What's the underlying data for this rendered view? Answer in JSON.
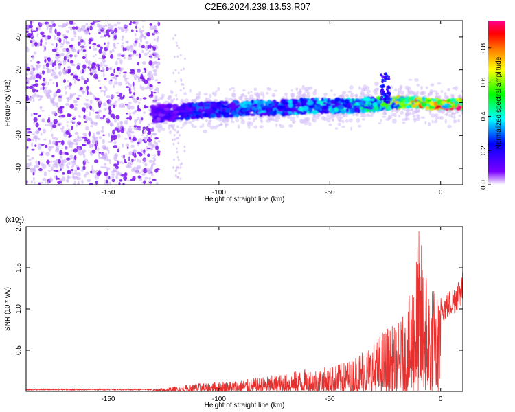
{
  "title": "C2E6.2024.239.13.53.R07",
  "chart_data": [
    {
      "type": "heatmap",
      "xlabel": "Height of straight line (km)",
      "ylabel": "Frequency (Hz)",
      "xlim": [
        -187,
        10
      ],
      "ylim": [
        -50,
        50
      ],
      "x_ticks": [
        -150,
        -100,
        -50,
        0
      ],
      "y_ticks": [
        -40,
        -20,
        0,
        20,
        40
      ],
      "colorbar": {
        "label": "Normalized spectral amplitude",
        "range": [
          0,
          0.96
        ],
        "ticks": [
          "0.0",
          "0.2",
          "0.4",
          "0.6",
          "0.8"
        ],
        "colors": [
          "#ffffff",
          "#7a00ff",
          "#0000ff",
          "#00ffff",
          "#00ff00",
          "#ffff00",
          "#ff8000",
          "#ff0000",
          "#ff0090"
        ]
      },
      "ridge": {
        "x": [
          -130,
          -120,
          -110,
          -100,
          -90,
          -80,
          -70,
          -60,
          -50,
          -40,
          -30,
          -20,
          -10,
          0,
          9
        ],
        "y": [
          -7,
          -6,
          -5,
          -4,
          -4,
          -3,
          -3,
          -2,
          -2,
          -2,
          -1,
          0,
          0,
          -1,
          -1
        ],
        "amplitude": [
          0.15,
          0.2,
          0.3,
          0.3,
          0.35,
          0.35,
          0.35,
          0.4,
          0.4,
          0.45,
          0.5,
          0.7,
          0.8,
          0.9,
          0.95
        ]
      },
      "noise_region": {
        "x": [
          -187,
          -127
        ],
        "y": [
          -50,
          50
        ]
      },
      "spur": {
        "x": [
          -27,
          -23
        ],
        "y": [
          0,
          18
        ]
      }
    },
    {
      "type": "line",
      "xlabel": "Height of straight line (km)",
      "ylabel": "SNR (10 * v/v)",
      "y_multiplier": "(x10⁴)",
      "xlim": [
        -187,
        10
      ],
      "ylim": [
        0,
        2.0
      ],
      "x_ticks": [
        -150,
        -100,
        -50,
        0
      ],
      "y_ticks": [
        "0.5",
        "1.0",
        "1.5",
        "2.0"
      ],
      "color": "#e8302e",
      "envelope": {
        "x": [
          -187,
          -150,
          -130,
          -120,
          -110,
          -100,
          -90,
          -80,
          -70,
          -60,
          -50,
          -40,
          -35,
          -30,
          -25,
          -20,
          -15,
          -10,
          -5,
          0,
          5,
          10
        ],
        "y": [
          0.02,
          0.02,
          0.03,
          0.06,
          0.1,
          0.12,
          0.14,
          0.18,
          0.22,
          0.28,
          0.3,
          0.4,
          0.55,
          0.6,
          0.8,
          0.8,
          1.0,
          2.0,
          1.4,
          1.1,
          1.2,
          1.4
        ]
      }
    }
  ]
}
